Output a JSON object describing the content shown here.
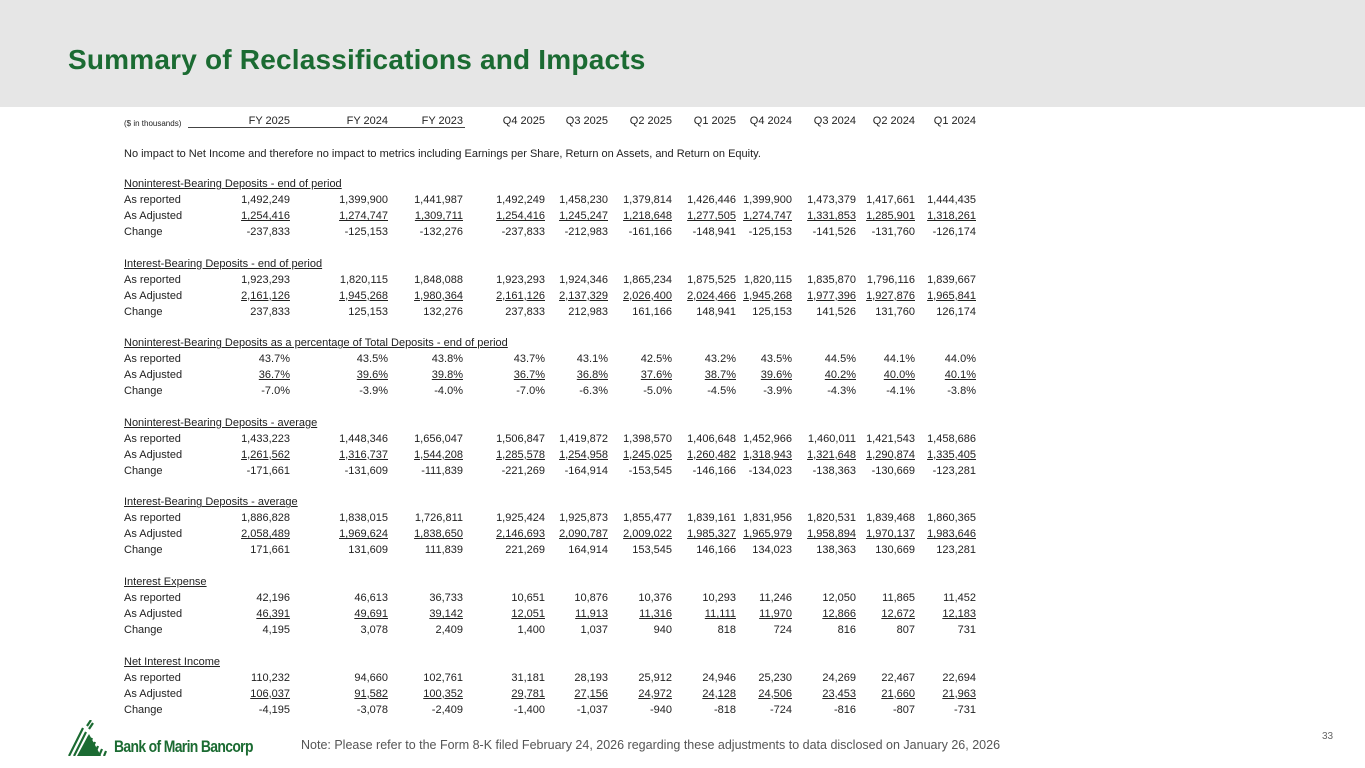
{
  "title": "Summary of Reclassifications and Impacts",
  "units_label": "($ in thousands)",
  "columns": [
    "FY 2025",
    "FY 2024",
    "FY 2023",
    "Q4 2025",
    "Q3 2025",
    "Q2 2025",
    "Q1 2025",
    "Q4 2024",
    "Q3 2024",
    "Q2 2024",
    "Q1 2024"
  ],
  "intro_note": "No impact to Net Income and therefore no impact to metrics including Earnings per Share, Return on Assets, and Return on Equity.",
  "sections": [
    {
      "title": "Noninterest-Bearing Deposits - end of period",
      "rows": [
        {
          "label": "As reported",
          "values": [
            "1,492,249",
            "1,399,900",
            "1,441,987",
            "1,492,249",
            "1,458,230",
            "1,379,814",
            "1,426,446",
            "1,399,900",
            "1,473,379",
            "1,417,661",
            "1,444,435"
          ]
        },
        {
          "label": "As Adjusted",
          "values": [
            "1,254,416",
            "1,274,747",
            "1,309,711",
            "1,254,416",
            "1,245,247",
            "1,218,648",
            "1,277,505",
            "1,274,747",
            "1,331,853",
            "1,285,901",
            "1,318,261"
          ]
        },
        {
          "label": "Change",
          "values": [
            "-237,833",
            "-125,153",
            "-132,276",
            "-237,833",
            "-212,983",
            "-161,166",
            "-148,941",
            "-125,153",
            "-141,526",
            "-131,760",
            "-126,174"
          ]
        }
      ]
    },
    {
      "title": "Interest-Bearing Deposits - end of period",
      "rows": [
        {
          "label": "As reported",
          "values": [
            "1,923,293",
            "1,820,115",
            "1,848,088",
            "1,923,293",
            "1,924,346",
            "1,865,234",
            "1,875,525",
            "1,820,115",
            "1,835,870",
            "1,796,116",
            "1,839,667"
          ]
        },
        {
          "label": "As Adjusted",
          "values": [
            "2,161,126",
            "1,945,268",
            "1,980,364",
            "2,161,126",
            "2,137,329",
            "2,026,400",
            "2,024,466",
            "1,945,268",
            "1,977,396",
            "1,927,876",
            "1,965,841"
          ]
        },
        {
          "label": "Change",
          "values": [
            "237,833",
            "125,153",
            "132,276",
            "237,833",
            "212,983",
            "161,166",
            "148,941",
            "125,153",
            "141,526",
            "131,760",
            "126,174"
          ]
        }
      ]
    },
    {
      "title": "Noninterest-Bearing Deposits as a percentage of Total Deposits - end of period",
      "rows": [
        {
          "label": "As reported",
          "values": [
            "43.7%",
            "43.5%",
            "43.8%",
            "43.7%",
            "43.1%",
            "42.5%",
            "43.2%",
            "43.5%",
            "44.5%",
            "44.1%",
            "44.0%"
          ]
        },
        {
          "label": "As Adjusted",
          "values": [
            "36.7%",
            "39.6%",
            "39.8%",
            "36.7%",
            "36.8%",
            "37.6%",
            "38.7%",
            "39.6%",
            "40.2%",
            "40.0%",
            "40.1%"
          ]
        },
        {
          "label": "Change",
          "values": [
            "-7.0%",
            "-3.9%",
            "-4.0%",
            "-7.0%",
            "-6.3%",
            "-5.0%",
            "-4.5%",
            "-3.9%",
            "-4.3%",
            "-4.1%",
            "-3.8%"
          ]
        }
      ]
    },
    {
      "title": "Noninterest-Bearing Deposits - average",
      "rows": [
        {
          "label": "As reported",
          "values": [
            "1,433,223",
            "1,448,346",
            "1,656,047",
            "1,506,847",
            "1,419,872",
            "1,398,570",
            "1,406,648",
            "1,452,966",
            "1,460,011",
            "1,421,543",
            "1,458,686"
          ]
        },
        {
          "label": "As Adjusted",
          "values": [
            "1,261,562",
            "1,316,737",
            "1,544,208",
            "1,285,578",
            "1,254,958",
            "1,245,025",
            "1,260,482",
            "1,318,943",
            "1,321,648",
            "1,290,874",
            "1,335,405"
          ]
        },
        {
          "label": "Change",
          "values": [
            "-171,661",
            "-131,609",
            "-111,839",
            "-221,269",
            "-164,914",
            "-153,545",
            "-146,166",
            "-134,023",
            "-138,363",
            "-130,669",
            "-123,281"
          ]
        }
      ]
    },
    {
      "title": "Interest-Bearing Deposits - average",
      "rows": [
        {
          "label": "As reported",
          "values": [
            "1,886,828",
            "1,838,015",
            "1,726,811",
            "1,925,424",
            "1,925,873",
            "1,855,477",
            "1,839,161",
            "1,831,956",
            "1,820,531",
            "1,839,468",
            "1,860,365"
          ]
        },
        {
          "label": "As Adjusted",
          "values": [
            "2,058,489",
            "1,969,624",
            "1,838,650",
            "2,146,693",
            "2,090,787",
            "2,009,022",
            "1,985,327",
            "1,965,979",
            "1,958,894",
            "1,970,137",
            "1,983,646"
          ]
        },
        {
          "label": "Change",
          "values": [
            "171,661",
            "131,609",
            "111,839",
            "221,269",
            "164,914",
            "153,545",
            "146,166",
            "134,023",
            "138,363",
            "130,669",
            "123,281"
          ]
        }
      ]
    },
    {
      "title": "Interest Expense",
      "rows": [
        {
          "label": "As reported",
          "values": [
            "42,196",
            "46,613",
            "36,733",
            "10,651",
            "10,876",
            "10,376",
            "10,293",
            "11,246",
            "12,050",
            "11,865",
            "11,452"
          ]
        },
        {
          "label": "As Adjusted",
          "values": [
            "46,391",
            "49,691",
            "39,142",
            "12,051",
            "11,913",
            "11,316",
            "11,111",
            "11,970",
            "12,866",
            "12,672",
            "12,183"
          ]
        },
        {
          "label": "Change",
          "values": [
            "4,195",
            "3,078",
            "2,409",
            "1,400",
            "1,037",
            "940",
            "818",
            "724",
            "816",
            "807",
            "731"
          ]
        }
      ]
    },
    {
      "title": "Net Interest Income",
      "rows": [
        {
          "label": "As reported",
          "values": [
            "110,232",
            "94,660",
            "102,761",
            "31,181",
            "28,193",
            "25,912",
            "24,946",
            "25,230",
            "24,269",
            "22,467",
            "22,694"
          ]
        },
        {
          "label": "As Adjusted",
          "values": [
            "106,037",
            "91,582",
            "100,352",
            "29,781",
            "27,156",
            "24,972",
            "24,128",
            "24,506",
            "23,453",
            "21,660",
            "21,963"
          ]
        },
        {
          "label": "Change",
          "values": [
            "-4,195",
            "-3,078",
            "-2,409",
            "-1,400",
            "-1,037",
            "-940",
            "-818",
            "-724",
            "-816",
            "-807",
            "-731"
          ]
        }
      ]
    }
  ],
  "footer": {
    "logo_text": "Bank of Marin Bancorp",
    "note": "Note: Please refer to the Form 8-K filed February 24, 2026 regarding these adjustments to data disclosed on January 26, 2026",
    "page_number": "33"
  },
  "colors": {
    "brand_green": "#1b6b32",
    "header_band": "#e6e6e6"
  }
}
